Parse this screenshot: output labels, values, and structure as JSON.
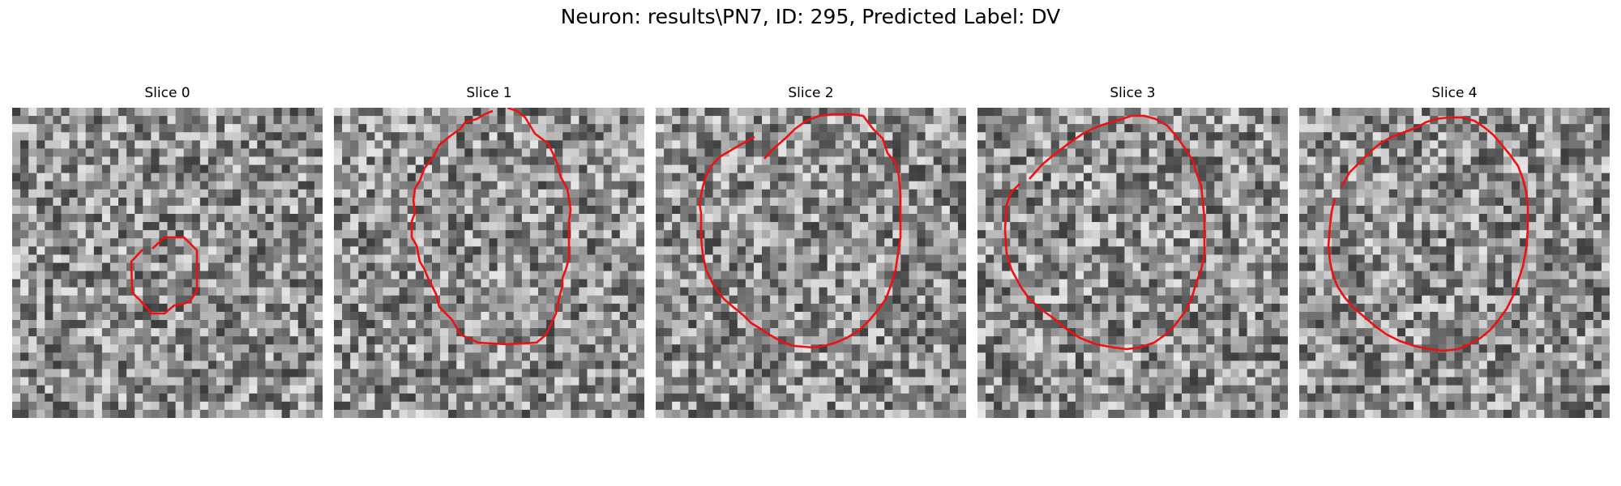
{
  "figure": {
    "title": "Neuron: results\\PN7, ID: 295, Predicted Label: DV"
  },
  "grid_cells": 38,
  "contour_color": "#ee1111",
  "slices": [
    {
      "title": "Slice 0",
      "seed": 11
    },
    {
      "title": "Slice 1",
      "seed": 23
    },
    {
      "title": "Slice 2",
      "seed": 37
    },
    {
      "title": "Slice 3",
      "seed": 41
    },
    {
      "title": "Slice 4",
      "seed": 59
    }
  ]
}
